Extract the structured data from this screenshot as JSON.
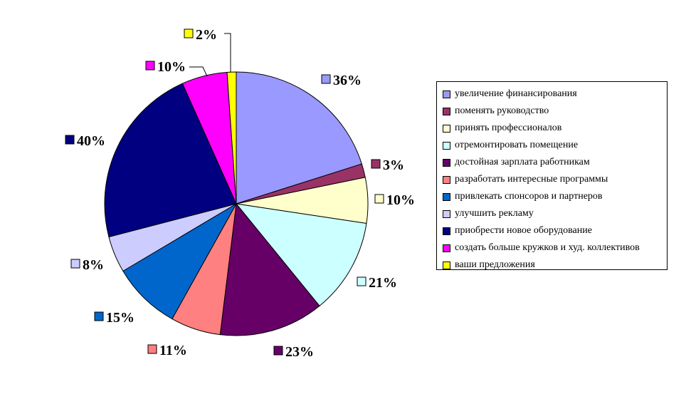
{
  "chart_data": {
    "type": "pie",
    "title": "",
    "slices": [
      {
        "label": "увеличение финансирования",
        "value": 36,
        "display": "36%",
        "color": "#9999ff"
      },
      {
        "label": "поменять руководство",
        "value": 3,
        "display": "3%",
        "color": "#993366"
      },
      {
        "label": "принять профессионалов",
        "value": 10,
        "display": "10%",
        "color": "#ffffcc"
      },
      {
        "label": "отремонтировать помещение",
        "value": 21,
        "display": "21%",
        "color": "#ccffff"
      },
      {
        "label": "достойная зарплата работникам",
        "value": 23,
        "display": "23%",
        "color": "#660066"
      },
      {
        "label": "разработать интересные программы",
        "value": 11,
        "display": "11%",
        "color": "#ff8080"
      },
      {
        "label": "привлекать спонсоров и партнеров",
        "value": 15,
        "display": "15%",
        "color": "#0066cc"
      },
      {
        "label": "улучшить рекламу",
        "value": 8,
        "display": "8%",
        "color": "#ccccff"
      },
      {
        "label": "приобрести новое оборудование",
        "value": 40,
        "display": "40%",
        "color": "#000080"
      },
      {
        "label": "создать больше кружков и худ. коллективов",
        "value": 10,
        "display": "10%",
        "color": "#ff00ff"
      },
      {
        "label": "ваши предложения",
        "value": 2,
        "display": "2%",
        "color": "#ffff00"
      }
    ],
    "legend_position": "right"
  }
}
